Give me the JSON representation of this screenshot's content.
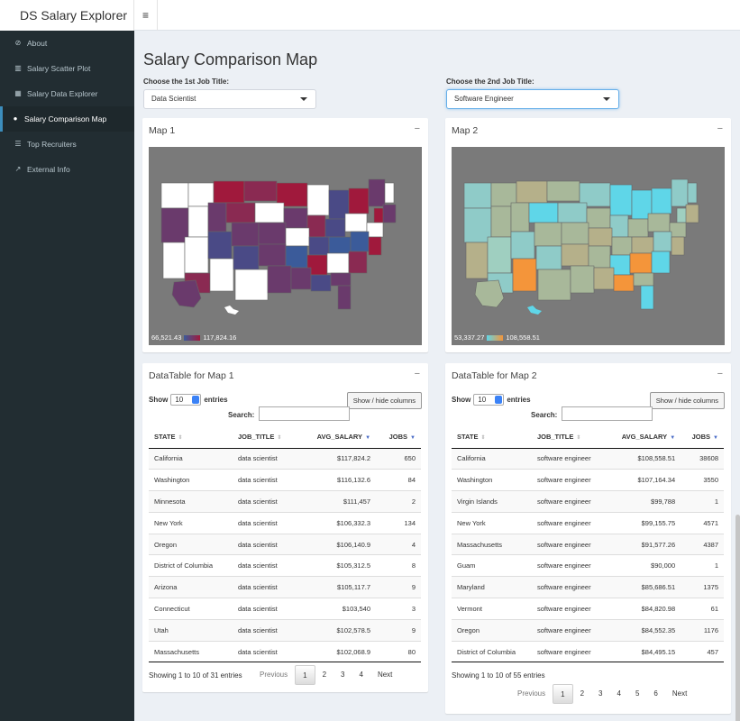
{
  "app": {
    "title": "DS Salary Explorer"
  },
  "sidebar": {
    "items": [
      {
        "label": "About",
        "icon": "compass-icon",
        "glyph": "⊘"
      },
      {
        "label": "Salary Scatter Plot",
        "icon": "bar-chart-icon",
        "glyph": "▥"
      },
      {
        "label": "Salary Data Explorer",
        "icon": "table-icon",
        "glyph": "▦"
      },
      {
        "label": "Salary Comparison Map",
        "icon": "map-marker-icon",
        "glyph": "●"
      },
      {
        "label": "Top Recruiters",
        "icon": "list-icon",
        "glyph": "☰"
      },
      {
        "label": "External Info",
        "icon": "external-link-icon",
        "glyph": "↗"
      }
    ],
    "active_index": 3
  },
  "page": {
    "title": "Salary Comparison Map"
  },
  "selectors": {
    "first": {
      "label": "Choose the 1st Job Title:",
      "value": "Data Scientist"
    },
    "second": {
      "label": "Choose the 2nd Job Title:",
      "value": "Software Engineer"
    }
  },
  "map1": {
    "title": "Map 1",
    "legend_min": "66,521.43",
    "legend_max": "117,824.16",
    "colors": {
      "low": "#3b5b9a",
      "high": "#a0193c",
      "none": "#ffffff"
    }
  },
  "map2": {
    "title": "Map 2",
    "legend_min": "53,337.27",
    "legend_max": "108,558.51",
    "colors": {
      "low": "#5fd6e8",
      "high": "#f4953a",
      "mid": "#a8b89a"
    }
  },
  "table1": {
    "title": "DataTable for Map 1",
    "show_label": "Show",
    "entries_label": "entries",
    "length_value": "10",
    "search_label": "Search:",
    "colvis_label": "Show / hide columns",
    "columns": [
      "STATE",
      "JOB_TITLE",
      "AVG_SALARY",
      "JOBS"
    ],
    "rows": [
      [
        "California",
        "data scientist",
        "$117,824.2",
        "650"
      ],
      [
        "Washington",
        "data scientist",
        "$116,132.6",
        "84"
      ],
      [
        "Minnesota",
        "data scientist",
        "$111,457",
        "2"
      ],
      [
        "New York",
        "data scientist",
        "$106,332.3",
        "134"
      ],
      [
        "Oregon",
        "data scientist",
        "$106,140.9",
        "4"
      ],
      [
        "District of Columbia",
        "data scientist",
        "$105,312.5",
        "8"
      ],
      [
        "Arizona",
        "data scientist",
        "$105,117.7",
        "9"
      ],
      [
        "Connecticut",
        "data scientist",
        "$103,540",
        "3"
      ],
      [
        "Utah",
        "data scientist",
        "$102,578.5",
        "9"
      ],
      [
        "Massachusetts",
        "data scientist",
        "$102,068.9",
        "80"
      ]
    ],
    "info": "Showing 1 to 10 of 31 entries",
    "pager": [
      "Previous",
      "1",
      "2",
      "3",
      "4",
      "Next"
    ]
  },
  "table2": {
    "title": "DataTable for Map 2",
    "show_label": "Show",
    "entries_label": "entries",
    "length_value": "10",
    "search_label": "Search:",
    "colvis_label": "Show / hide columns",
    "columns": [
      "STATE",
      "JOB_TITLE",
      "AVG_SALARY",
      "JOBS"
    ],
    "rows": [
      [
        "California",
        "software engineer",
        "$108,558.51",
        "38608"
      ],
      [
        "Washington",
        "software engineer",
        "$107,164.34",
        "3550"
      ],
      [
        "Virgin Islands",
        "software engineer",
        "$99,788",
        "1"
      ],
      [
        "New York",
        "software engineer",
        "$99,155.75",
        "4571"
      ],
      [
        "Massachusetts",
        "software engineer",
        "$91,577.26",
        "4387"
      ],
      [
        "Guam",
        "software engineer",
        "$90,000",
        "1"
      ],
      [
        "Maryland",
        "software engineer",
        "$85,686.51",
        "1375"
      ],
      [
        "Vermont",
        "software engineer",
        "$84,820.98",
        "61"
      ],
      [
        "Oregon",
        "software engineer",
        "$84,552.35",
        "1176"
      ],
      [
        "District of Columbia",
        "software engineer",
        "$84,495.15",
        "457"
      ]
    ],
    "info": "Showing 1 to 10 of 55 entries",
    "pager": [
      "Previous",
      "1",
      "2",
      "3",
      "4",
      "5",
      "6",
      "Next"
    ]
  }
}
